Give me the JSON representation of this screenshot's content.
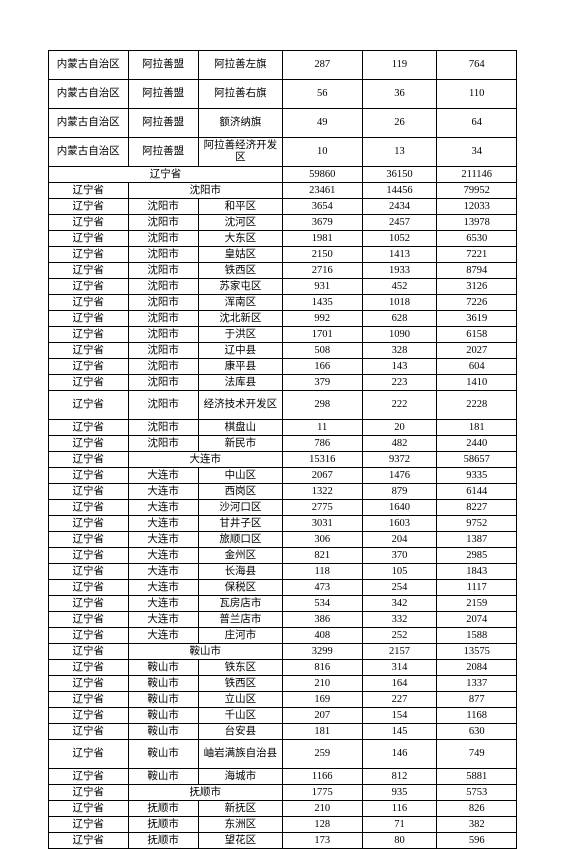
{
  "rows": [
    {
      "type": "tall",
      "c": [
        "内蒙古自治区",
        "阿拉善盟",
        "阿拉善左旗",
        "287",
        "119",
        "764"
      ]
    },
    {
      "type": "tall",
      "c": [
        "内蒙古自治区",
        "阿拉善盟",
        "阿拉善右旗",
        "56",
        "36",
        "110"
      ]
    },
    {
      "type": "tall",
      "c": [
        "内蒙古自治区",
        "阿拉善盟",
        "额济纳旗",
        "49",
        "26",
        "64"
      ]
    },
    {
      "type": "tall",
      "c": [
        "内蒙古自治区",
        "阿拉善盟",
        "阿拉善经济开发区",
        "10",
        "13",
        "34"
      ]
    },
    {
      "type": "span3",
      "label": "辽宁省",
      "v": [
        "59860",
        "36150",
        "211146"
      ]
    },
    {
      "type": "span2",
      "c1": "辽宁省",
      "label": "沈阳市",
      "v": [
        "23461",
        "14456",
        "79952"
      ]
    },
    {
      "type": "row",
      "c": [
        "辽宁省",
        "沈阳市",
        "和平区",
        "3654",
        "2434",
        "12033"
      ]
    },
    {
      "type": "row",
      "c": [
        "辽宁省",
        "沈阳市",
        "沈河区",
        "3679",
        "2457",
        "13978"
      ]
    },
    {
      "type": "row",
      "c": [
        "辽宁省",
        "沈阳市",
        "大东区",
        "1981",
        "1052",
        "6530"
      ]
    },
    {
      "type": "row",
      "c": [
        "辽宁省",
        "沈阳市",
        "皇姑区",
        "2150",
        "1413",
        "7221"
      ]
    },
    {
      "type": "row",
      "c": [
        "辽宁省",
        "沈阳市",
        "铁西区",
        "2716",
        "1933",
        "8794"
      ]
    },
    {
      "type": "row",
      "c": [
        "辽宁省",
        "沈阳市",
        "苏家屯区",
        "931",
        "452",
        "3126"
      ]
    },
    {
      "type": "row",
      "c": [
        "辽宁省",
        "沈阳市",
        "浑南区",
        "1435",
        "1018",
        "7226"
      ]
    },
    {
      "type": "row",
      "c": [
        "辽宁省",
        "沈阳市",
        "沈北新区",
        "992",
        "628",
        "3619"
      ]
    },
    {
      "type": "row",
      "c": [
        "辽宁省",
        "沈阳市",
        "于洪区",
        "1701",
        "1090",
        "6158"
      ]
    },
    {
      "type": "row",
      "c": [
        "辽宁省",
        "沈阳市",
        "辽中县",
        "508",
        "328",
        "2027"
      ]
    },
    {
      "type": "row",
      "c": [
        "辽宁省",
        "沈阳市",
        "康平县",
        "166",
        "143",
        "604"
      ]
    },
    {
      "type": "row",
      "c": [
        "辽宁省",
        "沈阳市",
        "法库县",
        "379",
        "223",
        "1410"
      ]
    },
    {
      "type": "tall",
      "c": [
        "辽宁省",
        "沈阳市",
        "经济技术开发区",
        "298",
        "222",
        "2228"
      ]
    },
    {
      "type": "row",
      "c": [
        "辽宁省",
        "沈阳市",
        "棋盘山",
        "11",
        "20",
        "181"
      ]
    },
    {
      "type": "row",
      "c": [
        "辽宁省",
        "沈阳市",
        "新民市",
        "786",
        "482",
        "2440"
      ]
    },
    {
      "type": "span2",
      "c1": "辽宁省",
      "label": "大连市",
      "v": [
        "15316",
        "9372",
        "58657"
      ]
    },
    {
      "type": "row",
      "c": [
        "辽宁省",
        "大连市",
        "中山区",
        "2067",
        "1476",
        "9335"
      ]
    },
    {
      "type": "row",
      "c": [
        "辽宁省",
        "大连市",
        "西岗区",
        "1322",
        "879",
        "6144"
      ]
    },
    {
      "type": "row",
      "c": [
        "辽宁省",
        "大连市",
        "沙河口区",
        "2775",
        "1640",
        "8227"
      ]
    },
    {
      "type": "row",
      "c": [
        "辽宁省",
        "大连市",
        "甘井子区",
        "3031",
        "1603",
        "9752"
      ]
    },
    {
      "type": "row",
      "c": [
        "辽宁省",
        "大连市",
        "旅顺口区",
        "306",
        "204",
        "1387"
      ]
    },
    {
      "type": "row",
      "c": [
        "辽宁省",
        "大连市",
        "金州区",
        "821",
        "370",
        "2985"
      ]
    },
    {
      "type": "row",
      "c": [
        "辽宁省",
        "大连市",
        "长海县",
        "118",
        "105",
        "1843"
      ]
    },
    {
      "type": "row",
      "c": [
        "辽宁省",
        "大连市",
        "保税区",
        "473",
        "254",
        "1117"
      ]
    },
    {
      "type": "row",
      "c": [
        "辽宁省",
        "大连市",
        "瓦房店市",
        "534",
        "342",
        "2159"
      ]
    },
    {
      "type": "row",
      "c": [
        "辽宁省",
        "大连市",
        "普兰店市",
        "386",
        "332",
        "2074"
      ]
    },
    {
      "type": "row",
      "c": [
        "辽宁省",
        "大连市",
        "庄河市",
        "408",
        "252",
        "1588"
      ]
    },
    {
      "type": "span2",
      "c1": "辽宁省",
      "label": "鞍山市",
      "v": [
        "3299",
        "2157",
        "13575"
      ]
    },
    {
      "type": "row",
      "c": [
        "辽宁省",
        "鞍山市",
        "铁东区",
        "816",
        "314",
        "2084"
      ]
    },
    {
      "type": "row",
      "c": [
        "辽宁省",
        "鞍山市",
        "铁西区",
        "210",
        "164",
        "1337"
      ]
    },
    {
      "type": "row",
      "c": [
        "辽宁省",
        "鞍山市",
        "立山区",
        "169",
        "227",
        "877"
      ]
    },
    {
      "type": "row",
      "c": [
        "辽宁省",
        "鞍山市",
        "千山区",
        "207",
        "154",
        "1168"
      ]
    },
    {
      "type": "row",
      "c": [
        "辽宁省",
        "鞍山市",
        "台安县",
        "181",
        "145",
        "630"
      ]
    },
    {
      "type": "tall",
      "c": [
        "辽宁省",
        "鞍山市",
        "岫岩满族自治县",
        "259",
        "146",
        "749"
      ]
    },
    {
      "type": "row",
      "c": [
        "辽宁省",
        "鞍山市",
        "海城市",
        "1166",
        "812",
        "5881"
      ]
    },
    {
      "type": "span2",
      "c1": "辽宁省",
      "label": "抚顺市",
      "v": [
        "1775",
        "935",
        "5753"
      ]
    },
    {
      "type": "row",
      "c": [
        "辽宁省",
        "抚顺市",
        "新抚区",
        "210",
        "116",
        "826"
      ]
    },
    {
      "type": "row",
      "c": [
        "辽宁省",
        "抚顺市",
        "东洲区",
        "128",
        "71",
        "382"
      ]
    },
    {
      "type": "row",
      "c": [
        "辽宁省",
        "抚顺市",
        "望花区",
        "173",
        "80",
        "596"
      ]
    }
  ]
}
